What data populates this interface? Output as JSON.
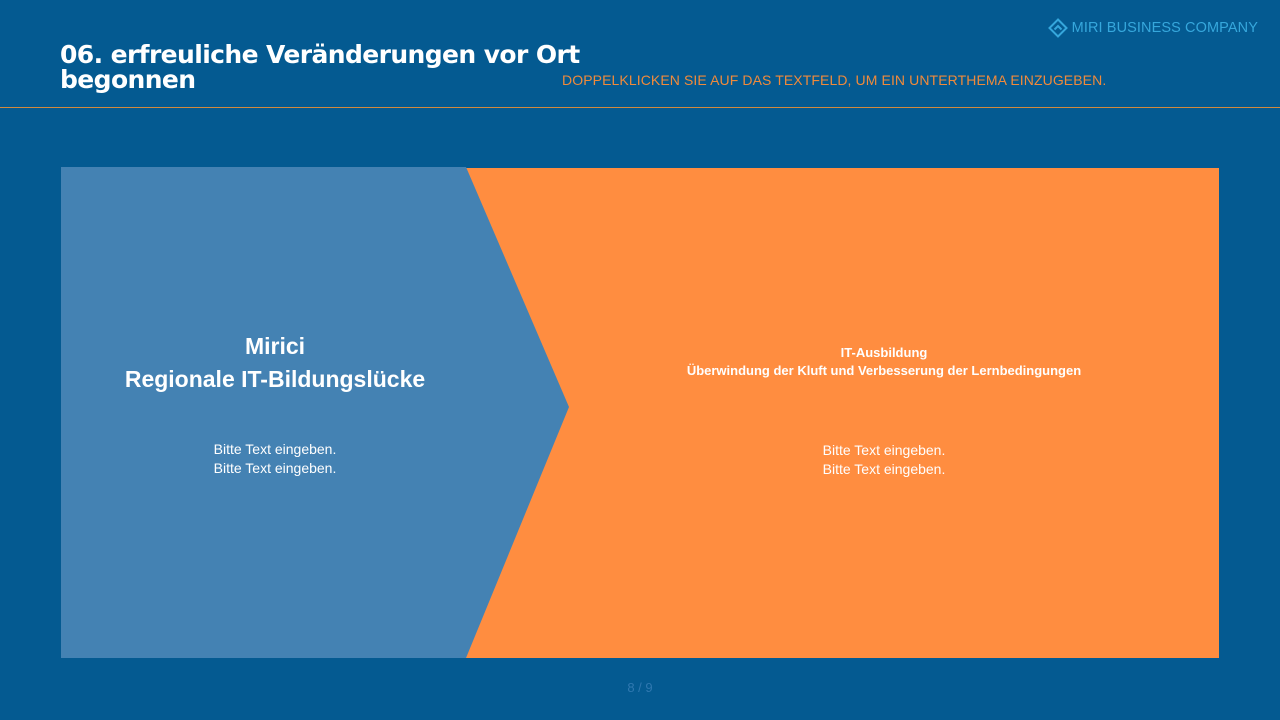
{
  "brand": {
    "name": "MIRI BUSINESS COMPANY",
    "icon": "diamond-logo-icon"
  },
  "header": {
    "title_line1": "06. erfreuliche Veränderungen vor Ort",
    "title_line2": "begonnen",
    "subtitle": "DOPPELKLICKEN SIE AUF DAS TEXTFELD, UM EIN UNTERTHEMA EINZUGEBEN."
  },
  "left_panel": {
    "heading_line1": "Mirici",
    "heading_line2": "Regionale IT-Bildungslücke",
    "body_line1": "Bitte Text eingeben.",
    "body_line2": "Bitte Text eingeben."
  },
  "right_panel": {
    "heading_line1": "IT-Ausbildung",
    "heading_line2": "Überwindung der Kluft und Verbesserung der Lernbedingungen",
    "body_line1": "Bitte Text eingeben.",
    "body_line2": "Bitte Text eingeben."
  },
  "footer": {
    "page_indicator": "8 / 9"
  },
  "colors": {
    "background": "#045a91",
    "accent_orange": "#ff8d40",
    "panel_blue": "#4482b3",
    "subtitle_orange": "#f08a3b",
    "brand_blue": "#36a7dc"
  }
}
